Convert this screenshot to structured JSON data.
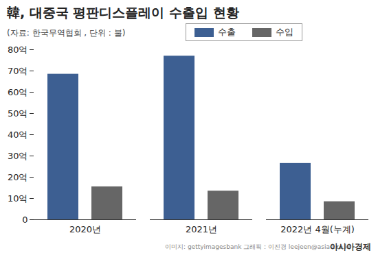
{
  "chart_data": {
    "type": "bar",
    "title": "韓, 대중국 평판디스플레이 수출입 현황",
    "subtitle": "(자료: 한국무역협회 , 단위 : 불)",
    "categories": [
      "2020년",
      "2021년",
      "2022년 4월(누계)"
    ],
    "series": [
      {
        "name": "수출",
        "color": "#3d5f92",
        "values": [
          68.5,
          77,
          26.5
        ]
      },
      {
        "name": "수입",
        "color": "#666666",
        "values": [
          15.5,
          13.5,
          8.5
        ]
      }
    ],
    "ylim": [
      0,
      80
    ],
    "yticks": [
      0,
      {
        "value": 10,
        "label": "10억"
      },
      {
        "value": 20,
        "label": "20억"
      },
      {
        "value": 30,
        "label": "30억"
      },
      {
        "value": 40,
        "label": "40억"
      },
      {
        "value": 50,
        "label": "50억"
      },
      {
        "value": 60,
        "label": "60억"
      },
      {
        "value": 70,
        "label": "70억"
      },
      {
        "value": 80,
        "label": "80억"
      }
    ],
    "grid": false,
    "legend": "top-right",
    "credit": "이미지: gettyimagesbank   그래픽 : 이진경 leejeen@asiae.co.kr",
    "publisher": "아시아경제"
  }
}
